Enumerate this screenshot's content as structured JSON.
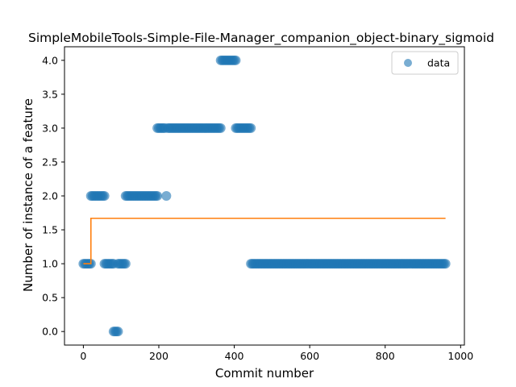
{
  "chart_data": {
    "type": "scatter",
    "title": "SimpleMobileTools-Simple-File-Manager_companion_object-binary_sigmoid",
    "xlabel": "Commit number",
    "ylabel": "Number of instance of a feature",
    "xlim": [
      -50,
      1010
    ],
    "ylim": [
      -0.2,
      4.2
    ],
    "xticks": [
      0,
      200,
      400,
      600,
      800,
      1000
    ],
    "yticks": [
      0.0,
      0.5,
      1.0,
      1.5,
      2.0,
      2.5,
      3.0,
      3.5,
      4.0
    ],
    "xtick_labels": [
      "0",
      "200",
      "400",
      "600",
      "800",
      "1000"
    ],
    "ytick_labels": [
      "0.0",
      "0.5",
      "1.0",
      "1.5",
      "2.0",
      "2.5",
      "3.0",
      "3.5",
      "4.0"
    ],
    "grid": false,
    "legend": {
      "position": "top-right",
      "entries": [
        "data"
      ]
    },
    "colors": {
      "scatter": "#1f77b4",
      "fit": "#ff7f0e"
    },
    "series": [
      {
        "name": "data",
        "kind": "scatter",
        "segments": [
          {
            "x_start": 0,
            "x_end": 20,
            "step": 4,
            "y": 1
          },
          {
            "x_start": 20,
            "x_end": 56,
            "step": 4,
            "y": 2
          },
          {
            "x_start": 56,
            "x_end": 80,
            "step": 4,
            "y": 1
          },
          {
            "x_start": 80,
            "x_end": 92,
            "step": 4,
            "y": 0
          },
          {
            "x_start": 92,
            "x_end": 112,
            "step": 4,
            "y": 1
          },
          {
            "x_start": 112,
            "x_end": 196,
            "step": 4,
            "y": 2
          },
          {
            "x_start": 196,
            "x_end": 216,
            "step": 4,
            "y": 3
          },
          {
            "x_start": 220,
            "x_end": 220,
            "step": 4,
            "y": 2
          },
          {
            "x_start": 224,
            "x_end": 364,
            "step": 4,
            "y": 3
          },
          {
            "x_start": 364,
            "x_end": 404,
            "step": 4,
            "y": 4
          },
          {
            "x_start": 404,
            "x_end": 444,
            "step": 4,
            "y": 3
          },
          {
            "x_start": 444,
            "x_end": 960,
            "step": 4,
            "y": 1
          }
        ]
      },
      {
        "kind": "line",
        "x": [
          0,
          20,
          20,
          960
        ],
        "y": [
          1.0,
          1.0,
          1.67,
          1.67
        ]
      }
    ]
  }
}
